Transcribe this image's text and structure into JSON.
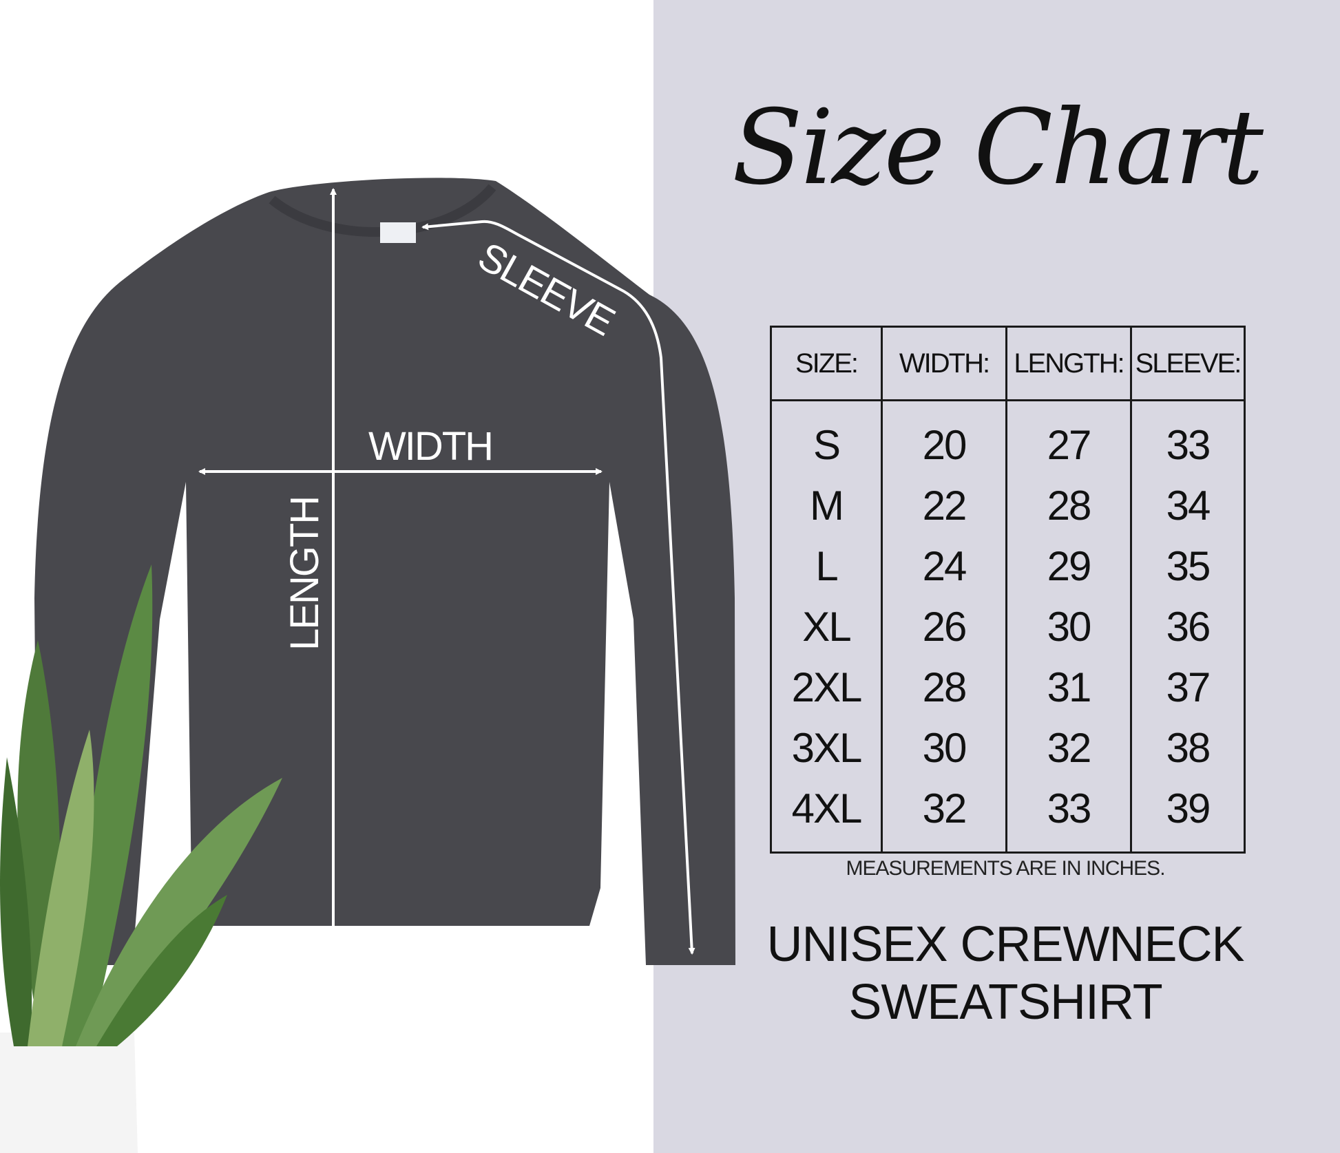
{
  "title": "Size Chart",
  "diagram_labels": {
    "sleeve": "SLEEVE",
    "width": "WIDTH",
    "length": "LENGTH"
  },
  "table": {
    "headers": [
      "SIZE:",
      "WIDTH:",
      "LENGTH:",
      "SLEEVE:"
    ],
    "rows": [
      [
        "S",
        "20",
        "27",
        "33"
      ],
      [
        "M",
        "22",
        "28",
        "34"
      ],
      [
        "L",
        "24",
        "29",
        "35"
      ],
      [
        "XL",
        "26",
        "30",
        "36"
      ],
      [
        "2XL",
        "28",
        "31",
        "37"
      ],
      [
        "3XL",
        "30",
        "32",
        "38"
      ],
      [
        "4XL",
        "32",
        "33",
        "39"
      ]
    ]
  },
  "note": "MEASUREMENTS ARE IN INCHES.",
  "product": {
    "line1": "UNISEX CREWNECK",
    "line2": "SWEATSHIRT"
  },
  "colors": {
    "panel": "#d9d8e2",
    "shirt": "#48484d",
    "text": "#111111"
  }
}
